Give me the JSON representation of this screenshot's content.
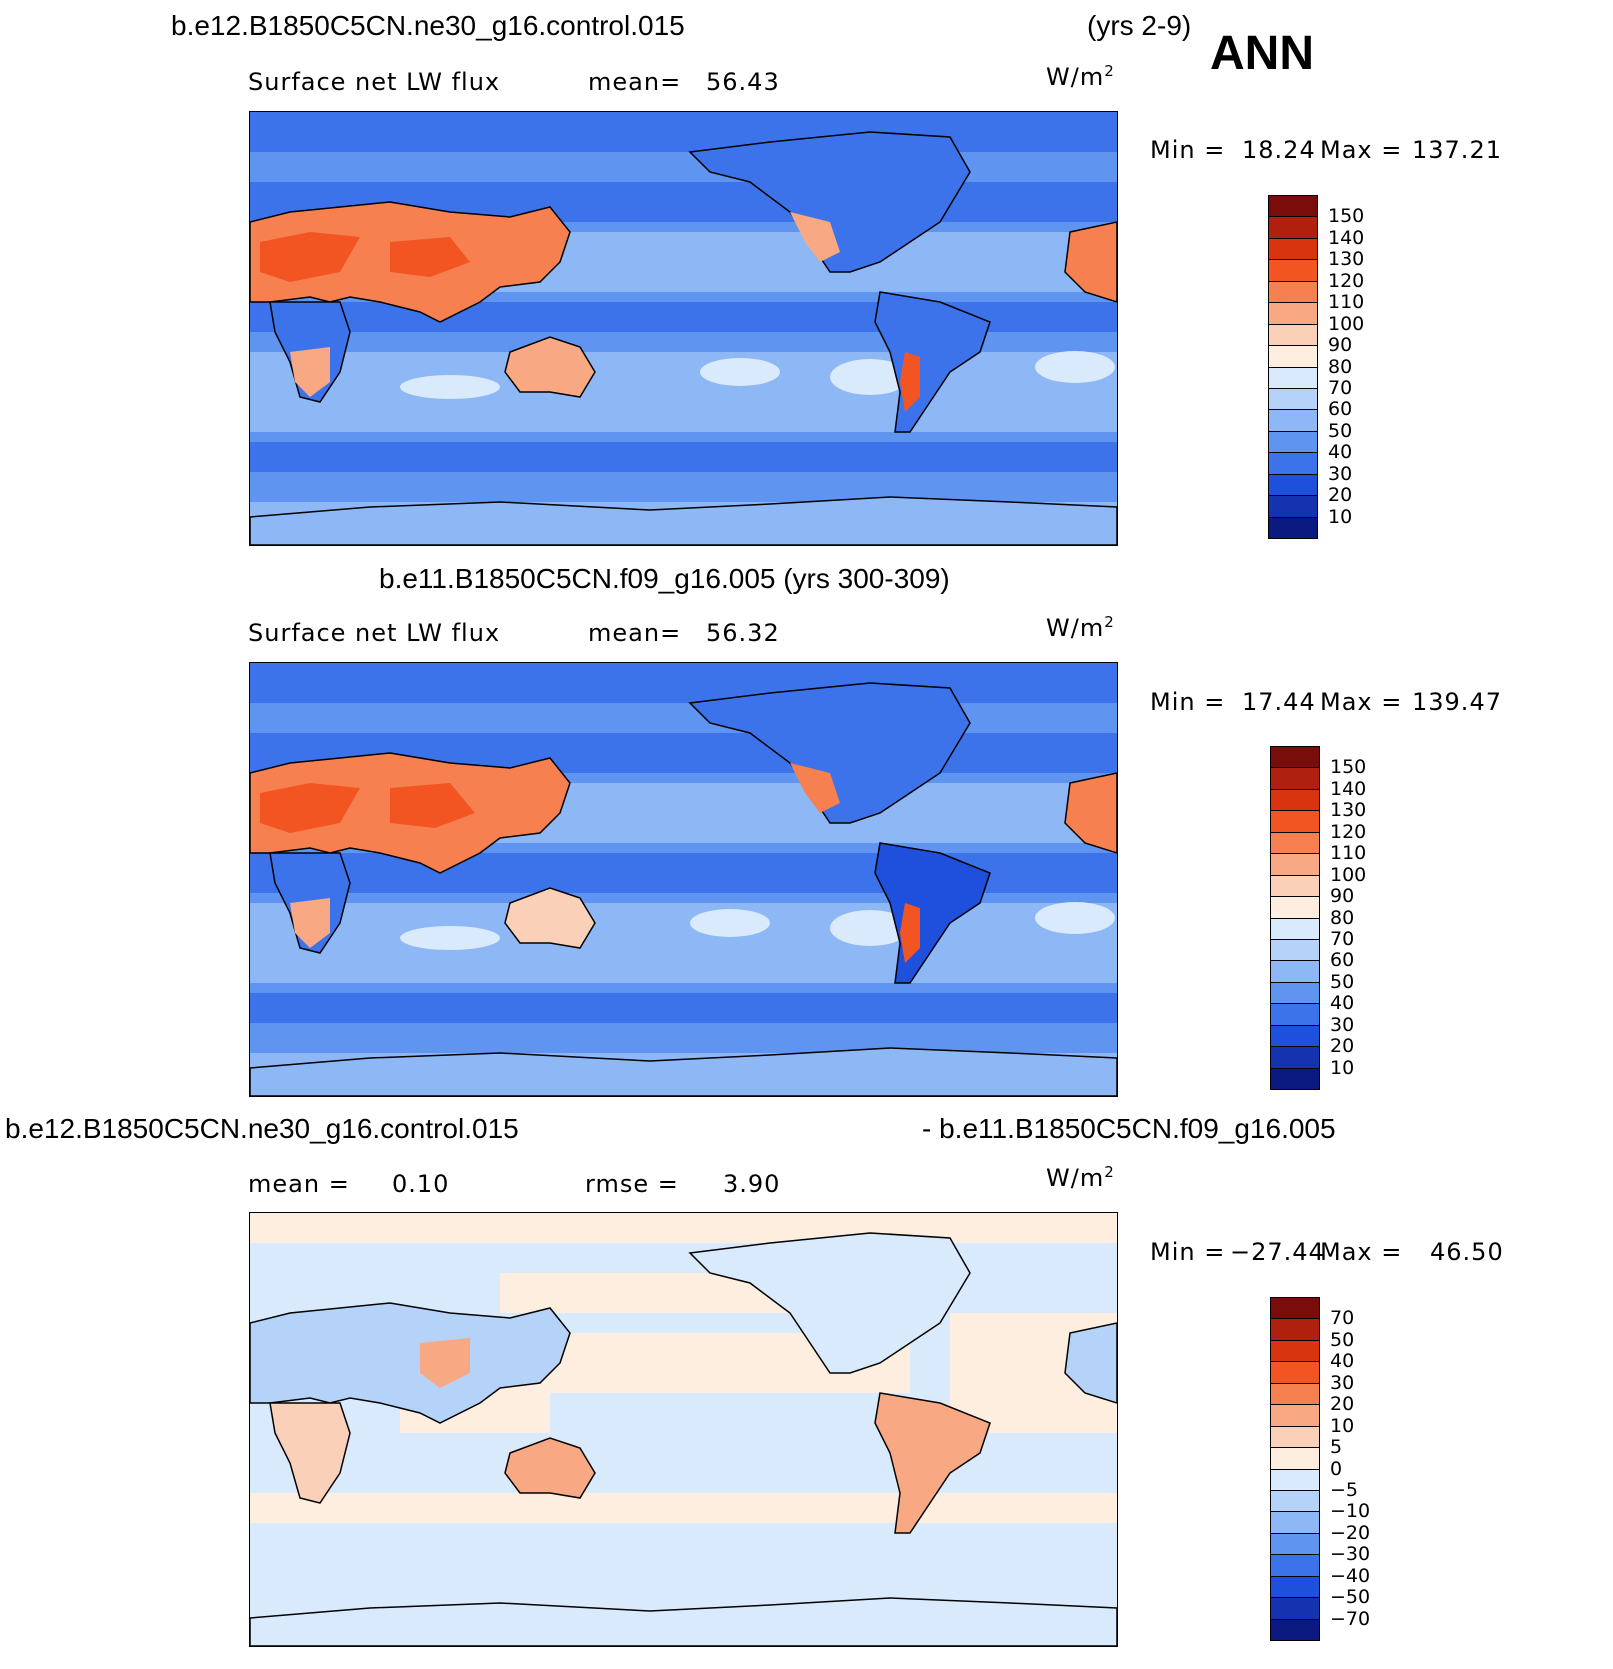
{
  "header": {
    "case_title": "b.e12.B1850C5CN.ne30_g16.control.015",
    "years": "(yrs 2-9)",
    "season": "ANN"
  },
  "panels": [
    {
      "id": "test",
      "subtitle": "",
      "left_label": "Surface net LW flux",
      "mean_label": "mean=",
      "mean_value": "56.43",
      "units": "W/m",
      "units_sup": "2",
      "min_label": "Min =",
      "min_value": "18.24",
      "max_label": "Max =",
      "max_value": "137.21",
      "colorbar": {
        "labels": [
          "150",
          "140",
          "130",
          "120",
          "110",
          "100",
          "90",
          "80",
          "70",
          "60",
          "50",
          "40",
          "30",
          "20",
          "10"
        ],
        "colors": [
          "#7a0c0c",
          "#b0200e",
          "#d93410",
          "#f25522",
          "#f6804f",
          "#f9a884",
          "#fbd0b8",
          "#fdeee0",
          "#d8eafb",
          "#b5d3f8",
          "#8db7f5",
          "#5f95f0",
          "#3d73ea",
          "#1f50dd",
          "#1532b0",
          "#0b1a80"
        ]
      }
    },
    {
      "id": "control",
      "subtitle": "b.e11.B1850C5CN.f09_g16.005 (yrs 300-309)",
      "left_label": "Surface net LW flux",
      "mean_label": "mean=",
      "mean_value": "56.32",
      "units": "W/m",
      "units_sup": "2",
      "min_label": "Min =",
      "min_value": "17.44",
      "max_label": "Max =",
      "max_value": "139.47",
      "colorbar": {
        "labels": [
          "150",
          "140",
          "130",
          "120",
          "110",
          "100",
          "90",
          "80",
          "70",
          "60",
          "50",
          "40",
          "30",
          "20",
          "10"
        ],
        "colors": [
          "#7a0c0c",
          "#b0200e",
          "#d93410",
          "#f25522",
          "#f6804f",
          "#f9a884",
          "#fbd0b8",
          "#fdeee0",
          "#d8eafb",
          "#b5d3f8",
          "#8db7f5",
          "#5f95f0",
          "#3d73ea",
          "#1f50dd",
          "#1532b0",
          "#0b1a80"
        ]
      }
    },
    {
      "id": "diff",
      "subtitle_left": "b.e12.B1850C5CN.ne30_g16.control.015",
      "subtitle_right": "- b.e11.B1850C5CN.f09_g16.005",
      "left_label": "mean =",
      "mean_value": "0.10",
      "rmse_label": "rmse =",
      "rmse_value": "3.90",
      "units": "W/m",
      "units_sup": "2",
      "min_label": "Min =",
      "min_value": "−27.44",
      "max_label": "Max =",
      "max_value": "46.50",
      "colorbar": {
        "labels": [
          "70",
          "50",
          "40",
          "30",
          "20",
          "10",
          "5",
          "0",
          "−5",
          "−10",
          "−20",
          "−30",
          "−40",
          "−50",
          "−70"
        ],
        "colors": [
          "#7a0c0c",
          "#b0200e",
          "#d93410",
          "#f25522",
          "#f6804f",
          "#f9a884",
          "#fbd0b8",
          "#fdeee0",
          "#d8eafb",
          "#b5d3f8",
          "#8db7f5",
          "#5f95f0",
          "#3d73ea",
          "#1f50dd",
          "#1532b0",
          "#0b1a80"
        ]
      }
    }
  ],
  "map_colors": {
    "ocean_test": "#5f95f0",
    "ocean_diff": "#d8eafb",
    "coast": "#000000"
  }
}
